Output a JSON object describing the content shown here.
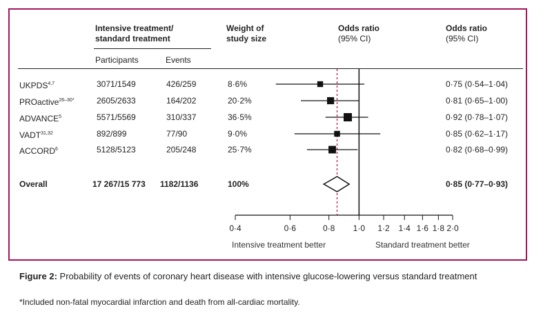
{
  "headers": {
    "group": "Intensive treatment/ standard treatment",
    "group_line1": "Intensive treatment/",
    "group_line2": "standard treatment",
    "participants": "Participants",
    "events": "Events",
    "weight_line1": "Weight of",
    "weight_line2": "study size",
    "or_line1": "Odds ratio",
    "or_line2": "(95% CI)",
    "or2_line1": "Odds ratio",
    "or2_line2": "(95% CI)"
  },
  "chart_data": {
    "type": "forest",
    "x_scale": "log",
    "xlim": [
      0.4,
      2.0
    ],
    "x_ticks": [
      0.4,
      0.6,
      0.8,
      1.0,
      1.2,
      1.4,
      1.6,
      1.8,
      2.0
    ],
    "x_tick_labels": [
      "0·4",
      "0·6",
      "0·8",
      "1·0",
      "1·2",
      "1·4",
      "1·6",
      "1·8",
      "2·0"
    ],
    "reference_line": 1.0,
    "pooled_line": 0.85,
    "xlabel_left": "Intensive treatment better",
    "xlabel_right": "Standard treatment better",
    "studies": [
      {
        "name": "UKPDS",
        "sup": "4,7",
        "participants": "3071/1549",
        "events": "426/259",
        "weight": "8·6%",
        "or": 0.75,
        "lo": 0.54,
        "hi": 1.04,
        "ci_text": "0·75 (0·54–1·04)"
      },
      {
        "name": "PROactive",
        "sup": "26–30*",
        "participants": "2605/2633",
        "events": "164/202",
        "weight": "20·2%",
        "or": 0.81,
        "lo": 0.65,
        "hi": 1.0,
        "ci_text": "0·81 (0·65–1·00)"
      },
      {
        "name": "ADVANCE",
        "sup": "5",
        "participants": "5571/5569",
        "events": "310/337",
        "weight": "36·5%",
        "or": 0.92,
        "lo": 0.78,
        "hi": 1.07,
        "ci_text": "0·92 (0·78–1·07)"
      },
      {
        "name": "VADT",
        "sup": "31,32",
        "participants": "892/899",
        "events": "77/90",
        "weight": "9·0%",
        "or": 0.85,
        "lo": 0.62,
        "hi": 1.17,
        "ci_text": "0·85 (0·62–1·17)"
      },
      {
        "name": "ACCORD",
        "sup": "6",
        "participants": "5128/5123",
        "events": "205/248",
        "weight": "25·7%",
        "or": 0.82,
        "lo": 0.68,
        "hi": 0.99,
        "ci_text": "0·82 (0·68–0·99)"
      }
    ],
    "overall": {
      "name": "Overall",
      "participants": "17 267/15 773",
      "events": "1182/1136",
      "weight": "100%",
      "or": 0.85,
      "lo": 0.77,
      "hi": 0.93,
      "ci_text": "0·85 (0·77–0·93)"
    }
  },
  "caption": {
    "label": "Figure 2:",
    "text": "Probability of events of coronary heart disease with intensive glucose-lowering versus standard treatment",
    "footnote": "*Included non-fatal myocardial infarction and death from all-cardiac mortality."
  }
}
